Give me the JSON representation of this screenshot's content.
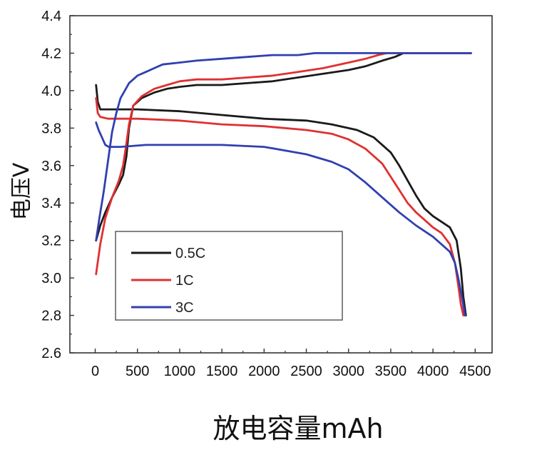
{
  "chart_data": {
    "type": "line",
    "title": "",
    "xlabel": "放电容量mAh",
    "ylabel": "电压V",
    "xlim": [
      -300,
      4700
    ],
    "ylim": [
      2.6,
      4.4
    ],
    "xticks": [
      0,
      500,
      1000,
      1500,
      2000,
      2500,
      3000,
      3500,
      4000,
      4500
    ],
    "yticks": [
      2.6,
      2.8,
      3.0,
      3.2,
      3.4,
      3.6,
      3.8,
      4.0,
      4.2,
      4.4
    ],
    "ytick_labels": [
      "2.6",
      "2.8",
      "3.0",
      "3.2",
      "3.4",
      "3.6",
      "3.8",
      "4.0",
      "4.2",
      "4.4"
    ],
    "grid": false,
    "legend_position": "bottom-left",
    "series": [
      {
        "name": "0.5C",
        "color": "#1a1a1a",
        "charge": {
          "x": [
            10,
            60,
            120,
            200,
            280,
            330,
            370,
            400,
            450,
            550,
            700,
            850,
            1000,
            1200,
            1500,
            1800,
            2100,
            2400,
            2700,
            3000,
            3200,
            3400,
            3550,
            3650,
            4450
          ],
          "y": [
            3.2,
            3.28,
            3.35,
            3.43,
            3.5,
            3.55,
            3.65,
            3.8,
            3.92,
            3.96,
            3.99,
            4.01,
            4.02,
            4.03,
            4.03,
            4.04,
            4.05,
            4.07,
            4.09,
            4.11,
            4.13,
            4.16,
            4.18,
            4.2,
            4.2
          ]
        },
        "discharge": {
          "x": [
            10,
            30,
            60,
            150,
            500,
            1000,
            1500,
            2000,
            2500,
            2800,
            3100,
            3300,
            3500,
            3600,
            3700,
            3800,
            3900,
            4000,
            4100,
            4200,
            4280,
            4330,
            4360,
            4390
          ],
          "y": [
            4.03,
            3.94,
            3.9,
            3.9,
            3.9,
            3.89,
            3.87,
            3.85,
            3.84,
            3.82,
            3.79,
            3.75,
            3.67,
            3.6,
            3.52,
            3.44,
            3.37,
            3.33,
            3.3,
            3.27,
            3.2,
            3.05,
            2.9,
            2.8
          ]
        }
      },
      {
        "name": "1C",
        "color": "#e03030",
        "charge": {
          "x": [
            10,
            60,
            120,
            200,
            280,
            330,
            370,
            400,
            450,
            550,
            700,
            850,
            1000,
            1200,
            1500,
            1800,
            2100,
            2400,
            2700,
            3000,
            3200,
            3350,
            3450,
            4450
          ],
          "y": [
            3.02,
            3.18,
            3.32,
            3.43,
            3.52,
            3.6,
            3.72,
            3.82,
            3.92,
            3.97,
            4.01,
            4.03,
            4.05,
            4.06,
            4.06,
            4.07,
            4.08,
            4.1,
            4.12,
            4.15,
            4.17,
            4.19,
            4.2,
            4.2
          ]
        },
        "discharge": {
          "x": [
            10,
            30,
            60,
            150,
            500,
            1000,
            1500,
            2000,
            2500,
            2800,
            3000,
            3200,
            3400,
            3500,
            3600,
            3700,
            3800,
            3900,
            4000,
            4100,
            4200,
            4260,
            4300,
            4330,
            4360
          ],
          "y": [
            3.96,
            3.88,
            3.86,
            3.85,
            3.85,
            3.84,
            3.82,
            3.81,
            3.79,
            3.77,
            3.74,
            3.69,
            3.61,
            3.54,
            3.47,
            3.4,
            3.35,
            3.31,
            3.27,
            3.24,
            3.18,
            3.08,
            2.96,
            2.86,
            2.8
          ]
        }
      },
      {
        "name": "3C",
        "color": "#3040b0",
        "charge": {
          "x": [
            10,
            50,
            100,
            150,
            200,
            250,
            300,
            350,
            400,
            450,
            500,
            600,
            700,
            800,
            1000,
            1200,
            1500,
            1800,
            2100,
            2400,
            2600,
            2700,
            4450
          ],
          "y": [
            3.2,
            3.32,
            3.46,
            3.62,
            3.78,
            3.88,
            3.96,
            4.0,
            4.04,
            4.06,
            4.08,
            4.1,
            4.12,
            4.14,
            4.15,
            4.16,
            4.17,
            4.18,
            4.19,
            4.19,
            4.2,
            4.2,
            4.2
          ]
        },
        "discharge": {
          "x": [
            10,
            40,
            80,
            120,
            160,
            300,
            600,
            1000,
            1500,
            2000,
            2500,
            2800,
            3000,
            3200,
            3400,
            3600,
            3800,
            4000,
            4100,
            4200,
            4260,
            4300,
            4350,
            4380
          ],
          "y": [
            3.83,
            3.79,
            3.75,
            3.71,
            3.7,
            3.7,
            3.71,
            3.71,
            3.71,
            3.7,
            3.66,
            3.62,
            3.58,
            3.51,
            3.43,
            3.35,
            3.28,
            3.22,
            3.18,
            3.14,
            3.08,
            3.0,
            2.88,
            2.8
          ]
        }
      }
    ]
  }
}
